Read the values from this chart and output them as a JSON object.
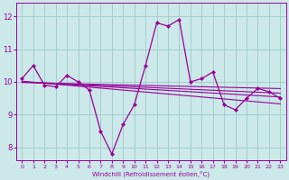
{
  "xlabel": "Windchill (Refroidissement éolien,°C)",
  "background_color": "#cce8e8",
  "line_color": "#990099",
  "grid_color": "#99cccc",
  "x_ticks": [
    0,
    1,
    2,
    3,
    4,
    5,
    6,
    7,
    8,
    9,
    10,
    11,
    12,
    13,
    14,
    15,
    16,
    17,
    18,
    19,
    20,
    21,
    22,
    23
  ],
  "y_ticks": [
    8,
    9,
    10,
    11,
    12
  ],
  "ylim": [
    7.6,
    12.4
  ],
  "xlim": [
    -0.5,
    23.5
  ],
  "main_data": [
    10.1,
    10.5,
    9.9,
    9.85,
    10.2,
    10.0,
    9.75,
    8.5,
    7.8,
    8.7,
    9.3,
    10.5,
    11.8,
    11.7,
    11.9,
    10.0,
    10.1,
    10.3,
    9.3,
    9.15,
    9.5,
    9.8,
    9.7,
    9.5
  ],
  "trend_lines": [
    [
      10.02,
      9.99,
      9.96,
      9.93,
      9.9,
      9.87,
      9.84,
      9.81,
      9.78,
      9.75,
      9.72,
      9.69,
      9.66,
      9.63,
      9.6,
      9.57,
      9.54,
      9.51,
      9.48,
      9.45,
      9.42,
      9.39,
      9.36,
      9.33
    ],
    [
      10.0,
      9.98,
      9.96,
      9.94,
      9.92,
      9.9,
      9.88,
      9.86,
      9.84,
      9.82,
      9.8,
      9.78,
      9.76,
      9.74,
      9.72,
      9.7,
      9.68,
      9.66,
      9.64,
      9.62,
      9.6,
      9.58,
      9.56,
      9.54
    ],
    [
      10.0,
      9.985,
      9.97,
      9.955,
      9.94,
      9.925,
      9.91,
      9.895,
      9.88,
      9.865,
      9.85,
      9.835,
      9.82,
      9.805,
      9.79,
      9.775,
      9.76,
      9.745,
      9.73,
      9.715,
      9.7,
      9.685,
      9.67,
      9.655
    ],
    [
      9.98,
      9.972,
      9.964,
      9.956,
      9.948,
      9.94,
      9.932,
      9.924,
      9.916,
      9.908,
      9.9,
      9.892,
      9.884,
      9.876,
      9.868,
      9.86,
      9.852,
      9.844,
      9.836,
      9.828,
      9.82,
      9.812,
      9.804,
      9.796
    ]
  ]
}
